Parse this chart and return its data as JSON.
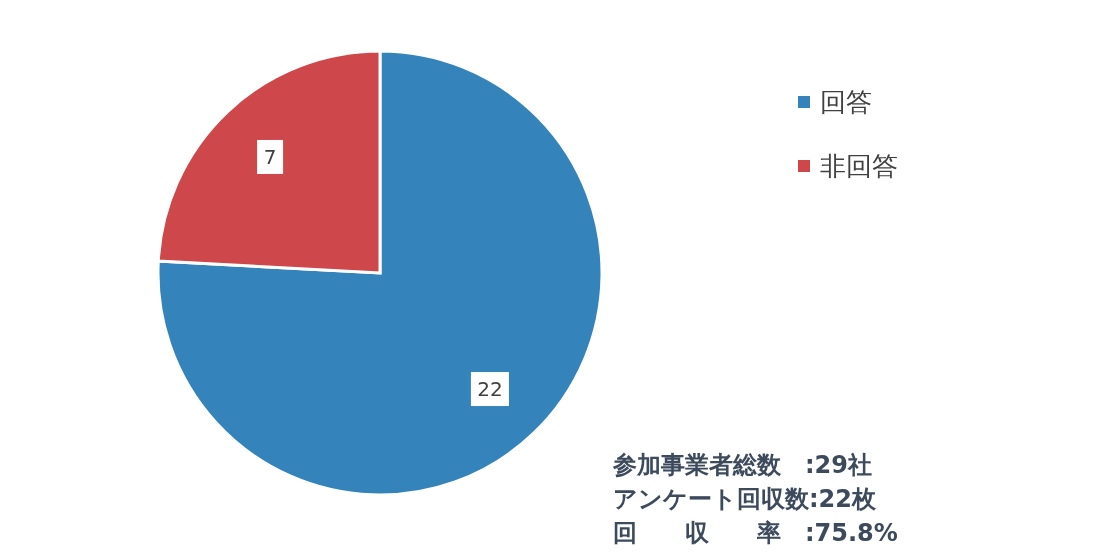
{
  "chart_data": {
    "type": "pie",
    "categories": [
      "回答",
      "非回答"
    ],
    "values": [
      22,
      7
    ],
    "colors": [
      "#3483bb",
      "#cd474b"
    ],
    "data_labels": true,
    "legend": "top right",
    "annotations": [
      "参加事業者総数　:29社",
      "アンケート回収数:22枚",
      "回　　収　　率　:75.8%"
    ]
  }
}
